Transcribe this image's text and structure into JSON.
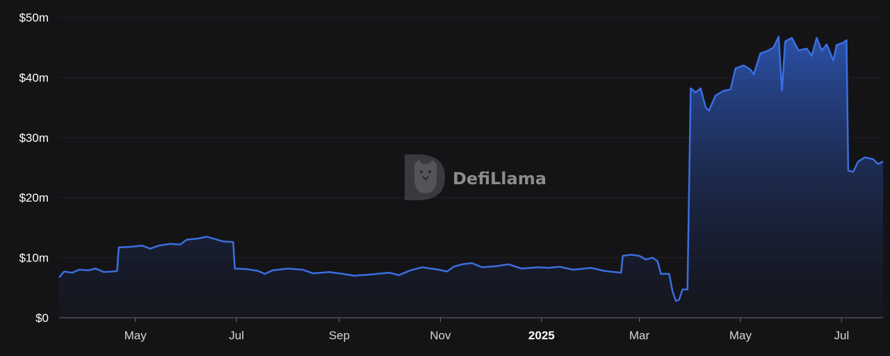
{
  "watermark": {
    "text": "DefiLlama"
  },
  "colors": {
    "background": "#141417",
    "line": "#3b6fe0",
    "area_top": "#2f5cc4",
    "axis": "#6b6b70"
  },
  "chart_data": {
    "type": "area",
    "title": "",
    "xlabel": "",
    "ylabel": "",
    "x_range": [
      "2024-03-16",
      "2025-07-26"
    ],
    "ylim": [
      0,
      50
    ],
    "y_unit": "$m",
    "y_ticks": [
      {
        "value": 0,
        "label": "$0"
      },
      {
        "value": 10,
        "label": "$10m"
      },
      {
        "value": 20,
        "label": "$20m"
      },
      {
        "value": 30,
        "label": "$30m"
      },
      {
        "value": 40,
        "label": "$40m"
      },
      {
        "value": 50,
        "label": "$50m"
      }
    ],
    "x_ticks": [
      {
        "date": "2024-05-01",
        "label": "May",
        "bold": false
      },
      {
        "date": "2024-07-01",
        "label": "Jul",
        "bold": false
      },
      {
        "date": "2024-09-01",
        "label": "Sep",
        "bold": false
      },
      {
        "date": "2024-11-01",
        "label": "Nov",
        "bold": false
      },
      {
        "date": "2025-01-01",
        "label": "2025",
        "bold": true
      },
      {
        "date": "2025-03-01",
        "label": "Mar",
        "bold": false
      },
      {
        "date": "2025-05-01",
        "label": "May",
        "bold": false
      },
      {
        "date": "2025-07-01",
        "label": "Jul",
        "bold": false
      }
    ],
    "grid": true,
    "legend": "none",
    "series": [
      {
        "points": [
          [
            "2024-03-16",
            6.7
          ],
          [
            "2024-03-19",
            7.7
          ],
          [
            "2024-03-24",
            7.5
          ],
          [
            "2024-03-28",
            8.0
          ],
          [
            "2024-04-03",
            7.9
          ],
          [
            "2024-04-07",
            8.2
          ],
          [
            "2024-04-12",
            7.6
          ],
          [
            "2024-04-17",
            7.7
          ],
          [
            "2024-04-20",
            7.8
          ],
          [
            "2024-04-21",
            11.7
          ],
          [
            "2024-04-28",
            11.8
          ],
          [
            "2024-05-05",
            12.0
          ],
          [
            "2024-05-10",
            11.5
          ],
          [
            "2024-05-15",
            12.0
          ],
          [
            "2024-05-22",
            12.3
          ],
          [
            "2024-05-28",
            12.2
          ],
          [
            "2024-06-01",
            13.0
          ],
          [
            "2024-06-08",
            13.2
          ],
          [
            "2024-06-13",
            13.5
          ],
          [
            "2024-06-18",
            13.1
          ],
          [
            "2024-06-23",
            12.7
          ],
          [
            "2024-06-29",
            12.6
          ],
          [
            "2024-06-30",
            8.2
          ],
          [
            "2024-07-07",
            8.1
          ],
          [
            "2024-07-14",
            7.8
          ],
          [
            "2024-07-18",
            7.3
          ],
          [
            "2024-07-23",
            7.9
          ],
          [
            "2024-08-01",
            8.2
          ],
          [
            "2024-08-10",
            8.0
          ],
          [
            "2024-08-16",
            7.4
          ],
          [
            "2024-08-26",
            7.6
          ],
          [
            "2024-09-03",
            7.3
          ],
          [
            "2024-09-10",
            7.0
          ],
          [
            "2024-09-20",
            7.2
          ],
          [
            "2024-10-01",
            7.5
          ],
          [
            "2024-10-07",
            7.1
          ],
          [
            "2024-10-14",
            7.9
          ],
          [
            "2024-10-21",
            8.4
          ],
          [
            "2024-10-31",
            8.0
          ],
          [
            "2024-11-05",
            7.7
          ],
          [
            "2024-11-09",
            8.5
          ],
          [
            "2024-11-14",
            8.9
          ],
          [
            "2024-11-20",
            9.1
          ],
          [
            "2024-11-26",
            8.4
          ],
          [
            "2024-12-05",
            8.6
          ],
          [
            "2024-12-12",
            8.9
          ],
          [
            "2024-12-20",
            8.2
          ],
          [
            "2024-12-30",
            8.4
          ],
          [
            "2025-01-05",
            8.3
          ],
          [
            "2025-01-12",
            8.5
          ],
          [
            "2025-01-20",
            8.0
          ],
          [
            "2025-01-31",
            8.3
          ],
          [
            "2025-02-08",
            7.8
          ],
          [
            "2025-02-14",
            7.6
          ],
          [
            "2025-02-18",
            7.5
          ],
          [
            "2025-02-19",
            10.3
          ],
          [
            "2025-02-24",
            10.5
          ],
          [
            "2025-03-01",
            10.3
          ],
          [
            "2025-03-05",
            9.7
          ],
          [
            "2025-03-09",
            10.0
          ],
          [
            "2025-03-12",
            9.4
          ],
          [
            "2025-03-14",
            7.3
          ],
          [
            "2025-03-19",
            7.3
          ],
          [
            "2025-03-21",
            4.4
          ],
          [
            "2025-03-23",
            2.8
          ],
          [
            "2025-03-25",
            3.0
          ],
          [
            "2025-03-27",
            4.7
          ],
          [
            "2025-03-30",
            4.7
          ],
          [
            "2025-04-01",
            38.2
          ],
          [
            "2025-04-04",
            37.5
          ],
          [
            "2025-04-07",
            38.2
          ],
          [
            "2025-04-10",
            35.0
          ],
          [
            "2025-04-12",
            34.5
          ],
          [
            "2025-04-16",
            37.0
          ],
          [
            "2025-04-21",
            37.8
          ],
          [
            "2025-04-25",
            38.0
          ],
          [
            "2025-04-28",
            41.5
          ],
          [
            "2025-05-03",
            42.0
          ],
          [
            "2025-05-07",
            41.3
          ],
          [
            "2025-05-09",
            40.5
          ],
          [
            "2025-05-13",
            44.0
          ],
          [
            "2025-05-18",
            44.5
          ],
          [
            "2025-05-21",
            45.0
          ],
          [
            "2025-05-24",
            46.8
          ],
          [
            "2025-05-26",
            37.8
          ],
          [
            "2025-05-28",
            46.0
          ],
          [
            "2025-06-01",
            46.6
          ],
          [
            "2025-06-05",
            44.5
          ],
          [
            "2025-06-10",
            44.8
          ],
          [
            "2025-06-13",
            43.6
          ],
          [
            "2025-06-16",
            46.6
          ],
          [
            "2025-06-19",
            44.5
          ],
          [
            "2025-06-22",
            45.5
          ],
          [
            "2025-06-24",
            44.2
          ],
          [
            "2025-06-26",
            42.8
          ],
          [
            "2025-06-28",
            45.4
          ],
          [
            "2025-07-02",
            45.8
          ],
          [
            "2025-07-04",
            46.2
          ],
          [
            "2025-07-05",
            24.5
          ],
          [
            "2025-07-08",
            24.3
          ],
          [
            "2025-07-11",
            26.0
          ],
          [
            "2025-07-15",
            26.7
          ],
          [
            "2025-07-20",
            26.4
          ],
          [
            "2025-07-23",
            25.6
          ],
          [
            "2025-07-26",
            26.0
          ]
        ]
      }
    ]
  }
}
